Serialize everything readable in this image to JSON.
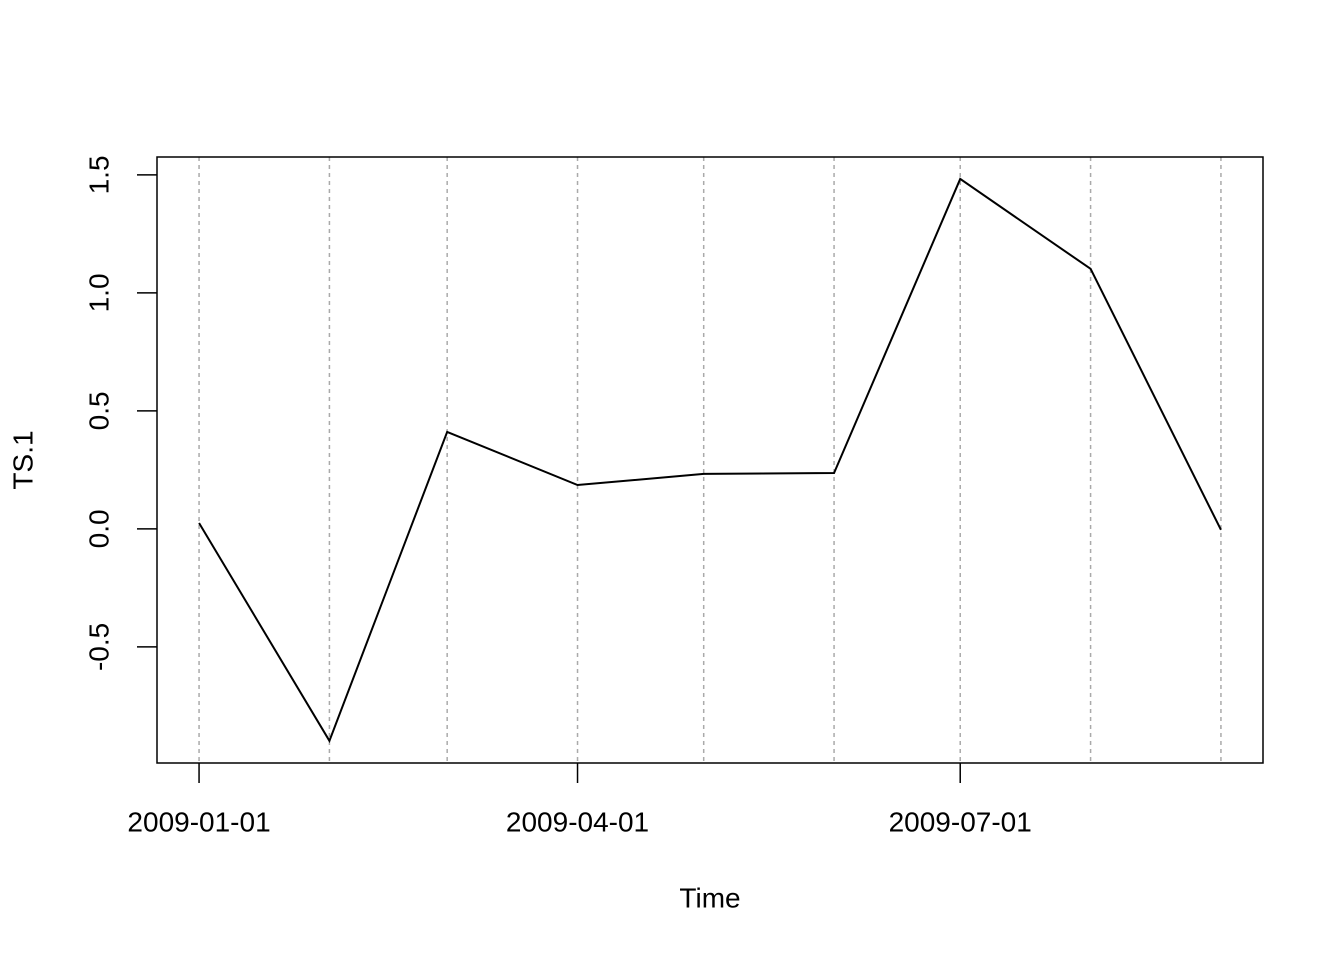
{
  "chart_data": {
    "type": "line",
    "x_label": "Time",
    "y_label": "TS.1",
    "x": [
      "2009-01-01",
      "2009-02-01",
      "2009-03-01",
      "2009-04-01",
      "2009-05-01",
      "2009-06-01",
      "2009-07-01",
      "2009-08-01",
      "2009-09-01"
    ],
    "series": [
      {
        "color": "#000000",
        "values": [
          0.025,
          -0.898,
          0.411,
          0.186,
          0.233,
          0.237,
          1.483,
          1.102,
          -0.004
        ]
      }
    ],
    "xlim": [
      "2008-12-22",
      "2009-09-11"
    ],
    "xticks": [
      "2009-01-01",
      "2009-04-01",
      "2009-07-01"
    ],
    "ylim": [
      -0.992,
      1.576
    ],
    "yticks": [
      -0.5,
      {
        "value": 0,
        "label": "0.0"
      },
      0.5,
      {
        "value": 1,
        "label": "1.0"
      },
      1.5
    ],
    "xgrid": true,
    "grid_color": "#aaaaaa"
  }
}
